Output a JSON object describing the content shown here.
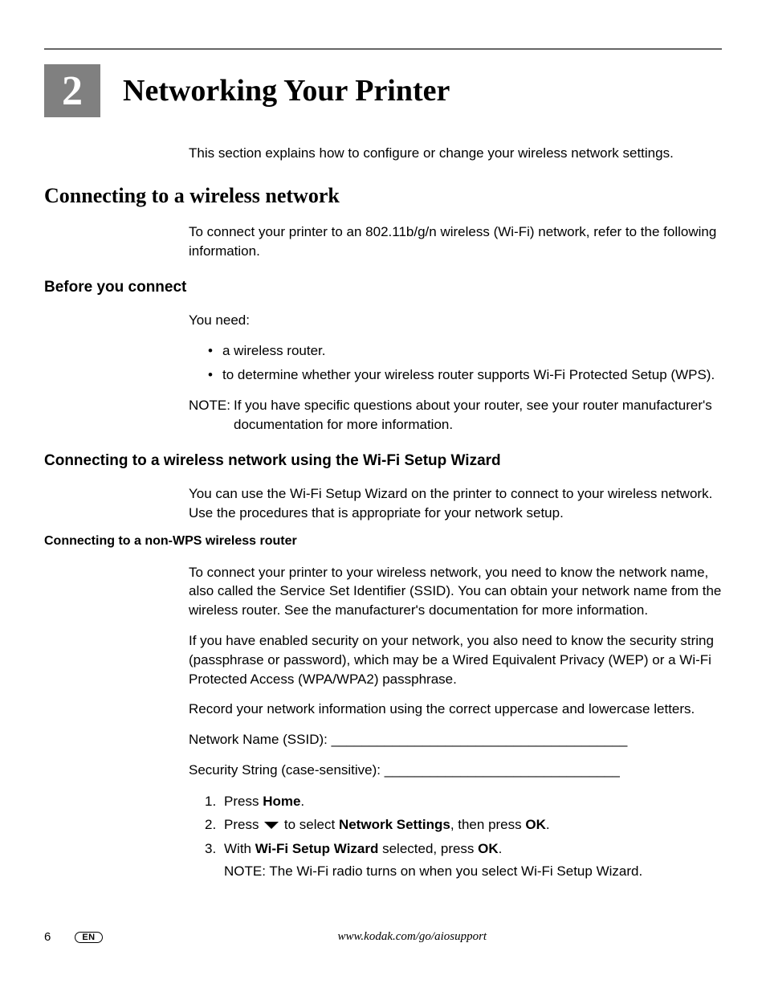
{
  "chapter": {
    "number": "2",
    "title": "Networking Your Printer",
    "intro": "This section explains how to configure or change your wireless network settings."
  },
  "section1": {
    "title": "Connecting to a wireless network",
    "body": "To connect your printer to an 802.11b/g/n wireless (Wi-Fi) network, refer to the following information."
  },
  "sub1": {
    "title": "Before you connect",
    "lead": "You need:",
    "bullets": [
      "a wireless router.",
      "to determine whether your wireless router supports Wi-Fi Protected Setup (WPS)."
    ],
    "note_label": "NOTE:",
    "note_body": "If you have specific questions about your router, see your router manufacturer's documentation for more information."
  },
  "sub2": {
    "title": "Connecting to a wireless network using the Wi-Fi Setup Wizard",
    "body": "You can use the Wi-Fi Setup Wizard on the printer to connect to your wireless network. Use the procedures that is appropriate for your network setup."
  },
  "sub3": {
    "title": "Connecting to a non-WPS wireless router",
    "p1": "To connect your printer to your wireless network, you need to know the network name, also called the Service Set Identifier (SSID). You can obtain your network name from the wireless router. See the manufacturer's documentation for more information.",
    "p2": "If you have enabled security on your network, you also need to know the security string (passphrase or password), which may be a Wired Equivalent Privacy (WEP) or a Wi-Fi Protected Access (WPA/WPA2) passphrase.",
    "p3": "Record your network information using the correct uppercase and lowercase letters.",
    "field1": "Network Name (SSID):   _______________________________________",
    "field2": "Security String (case-sensitive): _______________________________",
    "steps": {
      "s1_pre": "Press ",
      "s1_bold": "Home",
      "s1_post": ".",
      "s2_pre": "Press ",
      "s2_mid": " to select ",
      "s2_bold1": "Network Settings",
      "s2_mid2": ", then press ",
      "s2_bold2": "OK",
      "s2_post": ".",
      "s3_pre": "With ",
      "s3_bold1": "Wi-Fi Setup Wizard",
      "s3_mid": " selected, press ",
      "s3_bold2": "OK",
      "s3_post": ".",
      "s3_note": "NOTE: The Wi-Fi radio turns on when you select Wi-Fi Setup Wizard."
    }
  },
  "footer": {
    "page": "6",
    "lang": "EN",
    "url": "www.kodak.com/go/aiosupport"
  },
  "colors": {
    "chapter_box_bg": "#808080",
    "chapter_box_fg": "#ffffff",
    "rule": "#666666",
    "text": "#000000",
    "background": "#ffffff"
  },
  "typography": {
    "chapter_title_pt": 38,
    "chapter_number_pt": 52,
    "h2_pt": 26,
    "h3_pt": 19,
    "h4_pt": 16,
    "body_pt": 17,
    "footer_pt": 15
  }
}
